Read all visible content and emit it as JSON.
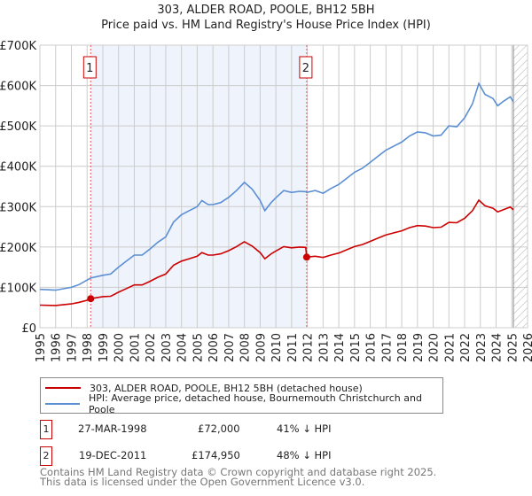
{
  "title_line1": "303, ALDER ROAD, POOLE, BH12 5BH",
  "title_line2": "Price paid vs. HM Land Registry's House Price Index (HPI)",
  "chart_data": {
    "type": "line",
    "title": "303, ALDER ROAD, POOLE, BH12 5BH — Price paid vs. HM Land Registry's House Price Index (HPI)",
    "xlim": [
      1995,
      2026
    ],
    "ylim": [
      0,
      700000
    ],
    "x_ticks": [
      "1995",
      "1996",
      "1997",
      "1998",
      "1999",
      "2000",
      "2001",
      "2002",
      "2003",
      "2004",
      "2005",
      "2006",
      "2007",
      "2008",
      "2009",
      "2010",
      "2011",
      "2012",
      "2013",
      "2014",
      "2015",
      "2016",
      "2017",
      "2018",
      "2019",
      "2020",
      "2021",
      "2022",
      "2023",
      "2024",
      "2025",
      "2026"
    ],
    "y_ticks": [
      {
        "v": 0,
        "label": "£0"
      },
      {
        "v": 100000,
        "label": "£100K"
      },
      {
        "v": 200000,
        "label": "£200K"
      },
      {
        "v": 300000,
        "label": "£300K"
      },
      {
        "v": 400000,
        "label": "£400K"
      },
      {
        "v": 500000,
        "label": "£500K"
      },
      {
        "v": 600000,
        "label": "£600K"
      },
      {
        "v": 700000,
        "label": "£700K"
      }
    ],
    "grid": true,
    "shaded_period": [
      1998.23,
      2011.96
    ],
    "forecast_hatch_from": 2025.1,
    "colors": {
      "price": "#cc0000",
      "hpi": "#5b8fd4",
      "shade": "#eef3fc"
    },
    "series": [
      {
        "name": "303, ALDER ROAD, POOLE, BH12 5BH (detached house)",
        "key": "price",
        "x": [
          1995,
          1996,
          1997,
          1997.5,
          1998,
          1998.23,
          1999,
          1999.5,
          2000,
          2000.5,
          2001,
          2001.5,
          2002,
          2002.5,
          2003,
          2003.5,
          2004,
          2004.5,
          2005,
          2005.3,
          2005.7,
          2006,
          2006.5,
          2007,
          2007.5,
          2008,
          2008.5,
          2009,
          2009.3,
          2009.7,
          2010,
          2010.5,
          2011,
          2011.5,
          2011.9,
          2011.96,
          2012.5,
          2013,
          2013.5,
          2014,
          2014.5,
          2015,
          2015.5,
          2016,
          2016.5,
          2017,
          2017.5,
          2018,
          2018.5,
          2019,
          2019.5,
          2020,
          2020.5,
          2021,
          2021.5,
          2022,
          2022.5,
          2022.9,
          2023.3,
          2023.8,
          2024.1,
          2024.5,
          2024.9,
          2025.1
        ],
        "y": [
          56000,
          55000,
          59000,
          63000,
          68000,
          72000,
          77000,
          78000,
          88000,
          97000,
          106000,
          106000,
          115000,
          125000,
          133000,
          155000,
          165000,
          171000,
          177000,
          186000,
          180000,
          180000,
          183000,
          191000,
          201000,
          213000,
          202000,
          186000,
          171000,
          183000,
          190000,
          201000,
          198000,
          200000,
          199000,
          174950,
          177000,
          174000,
          180000,
          185000,
          193000,
          201000,
          206000,
          214000,
          222000,
          230000,
          235000,
          240000,
          248000,
          253000,
          252000,
          248000,
          249000,
          261000,
          260000,
          271000,
          290000,
          316000,
          302000,
          296000,
          287000,
          293000,
          299000,
          292000
        ]
      },
      {
        "name": "HPI: Average price, detached house, Bournemouth Christchurch and Poole",
        "key": "hpi",
        "x": [
          1995,
          1996,
          1997,
          1997.5,
          1998,
          1998.23,
          1999,
          1999.5,
          2000,
          2000.5,
          2001,
          2001.5,
          2002,
          2002.5,
          2003,
          2003.5,
          2004,
          2004.5,
          2005,
          2005.3,
          2005.7,
          2006,
          2006.5,
          2007,
          2007.5,
          2008,
          2008.5,
          2009,
          2009.3,
          2009.7,
          2010,
          2010.5,
          2011,
          2011.5,
          2011.9,
          2011.96,
          2012.5,
          2013,
          2013.5,
          2014,
          2014.5,
          2015,
          2015.5,
          2016,
          2016.5,
          2017,
          2017.5,
          2018,
          2018.5,
          2019,
          2019.5,
          2020,
          2020.5,
          2021,
          2021.5,
          2022,
          2022.5,
          2022.9,
          2023.3,
          2023.8,
          2024.1,
          2024.5,
          2024.9,
          2025.1
        ],
        "y": [
          95000,
          93000,
          100000,
          107000,
          118000,
          123000,
          130000,
          133000,
          150000,
          165000,
          180000,
          180000,
          195000,
          212000,
          225000,
          262000,
          280000,
          290000,
          300000,
          315000,
          305000,
          305000,
          310000,
          323000,
          340000,
          360000,
          343000,
          315000,
          290000,
          310000,
          322000,
          340000,
          335000,
          338000,
          337000,
          335000,
          340000,
          333000,
          345000,
          355000,
          370000,
          385000,
          395000,
          410000,
          425000,
          440000,
          450000,
          460000,
          475000,
          485000,
          483000,
          475000,
          477000,
          500000,
          498000,
          520000,
          555000,
          605000,
          578000,
          568000,
          550000,
          562000,
          572000,
          560000
        ]
      }
    ],
    "sales": [
      {
        "id": "1",
        "x": 1998.23,
        "y": 72000,
        "date": "27-MAR-1998",
        "price": "£72,000",
        "hpi_diff": "41% ↓ HPI"
      },
      {
        "id": "2",
        "x": 2011.96,
        "y": 174950,
        "date": "19-DEC-2011",
        "price": "£174,950",
        "hpi_diff": "48% ↓ HPI"
      }
    ]
  },
  "legend": {
    "price_label": "303, ALDER ROAD, POOLE, BH12 5BH (detached house)",
    "hpi_label": "HPI: Average price, detached house, Bournemouth Christchurch and Poole"
  },
  "footer": {
    "line1": "Contains HM Land Registry data © Crown copyright and database right 2025.",
    "line2": "This data is licensed under the Open Government Licence v3.0."
  }
}
